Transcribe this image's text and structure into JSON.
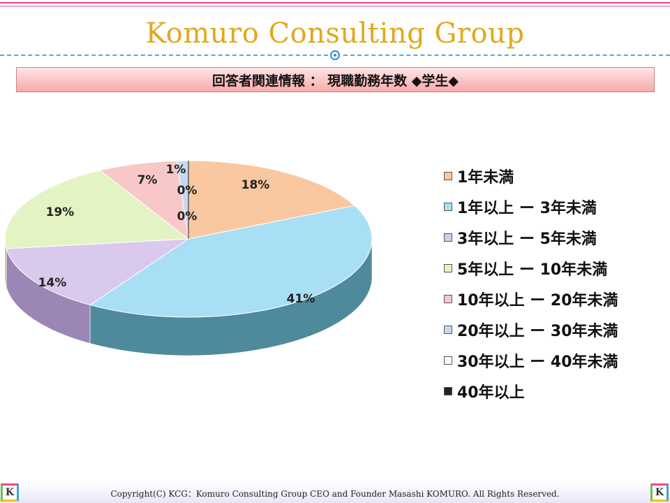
{
  "slide": {
    "brand_title": "Komuro Consulting Group",
    "header": "回答者関連情報 ： 現職勤務年数 ◆学生◆",
    "footer": "Copyright(C) KCG：Komuro Consulting Group CEO and Founder Masashi KOMURO. All Rights Reserved.",
    "logo_letter": "K"
  },
  "chart_data": {
    "type": "pie",
    "style": "3d",
    "legend_position": "right",
    "categories": [
      "1年未満",
      "1年以上 ー 3年未満",
      "3年以上 ー 5年未満",
      "5年以上 ー 10年未満",
      "10年以上 ー 20年未満",
      "20年以上 ー 30年未満",
      "30年以上 ー 40年未満",
      "40年以上"
    ],
    "values": [
      18,
      41,
      14,
      19,
      7,
      1,
      0,
      0
    ],
    "labels": [
      "18%",
      "41%",
      "14%",
      "19%",
      "7%",
      "1%",
      "0%",
      "0%"
    ],
    "colors": [
      "#f9c8a0",
      "#a9dff5",
      "#d9c9ec",
      "#e4f3c3",
      "#f8c8c8",
      "#c6d9f3",
      "#ffffff",
      "#222222"
    ],
    "side_colors": [
      "#c9905d",
      "#4f8a9c",
      "#9b86b5",
      "#a9c07a",
      "#c98c8c",
      "#7f9bc0",
      "#cccccc",
      "#111111"
    ]
  }
}
